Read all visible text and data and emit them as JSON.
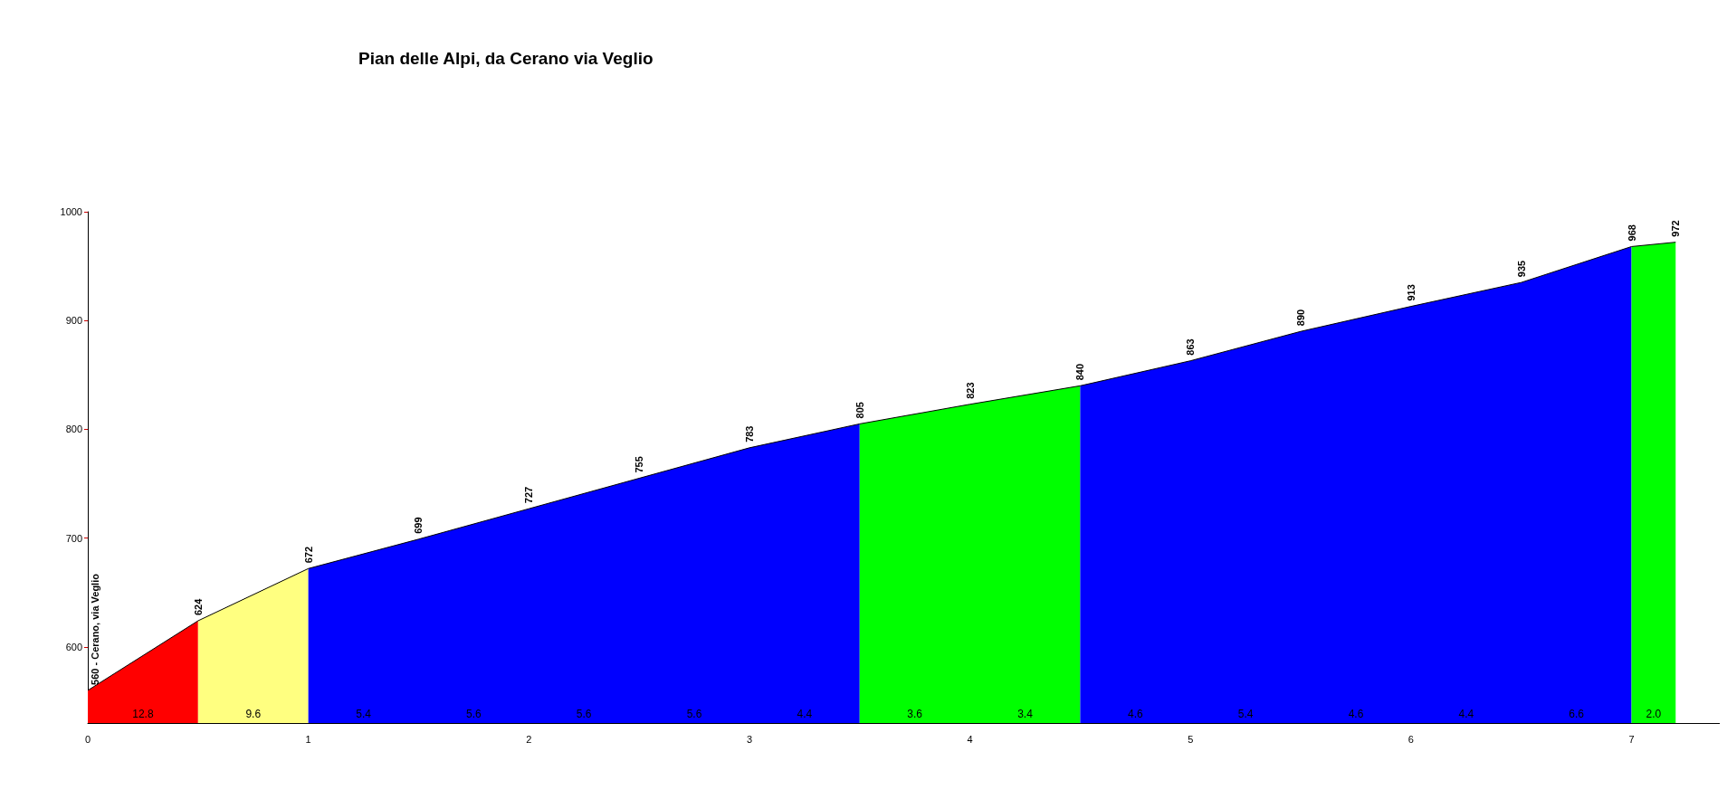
{
  "chart_data": {
    "type": "area",
    "title": "Pian delle Alpi, da Cerano via Veglio",
    "xlim": [
      0,
      7.4
    ],
    "xticks": [
      0,
      1,
      2,
      3,
      4,
      5,
      6,
      7
    ],
    "ylim": [
      530,
      1000
    ],
    "yticks": [
      600,
      700,
      800,
      900,
      1000
    ],
    "series": [
      {
        "color": "#ff0000",
        "x": [
          0,
          0.5
        ],
        "values": [
          560,
          624
        ],
        "value_labels": [
          "560 - Cerano, via Veglio",
          "624"
        ]
      },
      {
        "color": "#ffff80",
        "x": [
          0.5,
          1
        ],
        "values": [
          624,
          672
        ],
        "value_labels": [
          null,
          "672"
        ]
      },
      {
        "color": "#0000ff",
        "x": [
          1,
          1.5,
          2,
          2.5,
          3,
          3.5
        ],
        "values": [
          672,
          699,
          727,
          755,
          783,
          805
        ],
        "value_labels": [
          null,
          "699",
          "727",
          "755",
          "783",
          "805"
        ]
      },
      {
        "color": "#00ff00",
        "x": [
          3.5,
          4,
          4.5
        ],
        "values": [
          805,
          823,
          840
        ],
        "value_labels": [
          null,
          "823",
          "840"
        ]
      },
      {
        "color": "#0000ff",
        "x": [
          4.5,
          5,
          5.5,
          6,
          6.5,
          7
        ],
        "values": [
          840,
          863,
          890,
          913,
          935,
          968
        ],
        "value_labels": [
          null,
          "863",
          "890",
          "913",
          "935",
          "968"
        ]
      },
      {
        "color": "#00ff00",
        "x": [
          7,
          7.2
        ],
        "values": [
          968,
          972
        ],
        "value_labels": [
          null,
          "972"
        ]
      }
    ],
    "annotations": [
      "12.8",
      "9.6",
      "5.4",
      "5.6",
      "5.6",
      "5.6",
      "4.4",
      "3.6",
      "3.4",
      "4.6",
      "5.4",
      "4.6",
      "4.4",
      "6.6",
      "2.0"
    ]
  }
}
